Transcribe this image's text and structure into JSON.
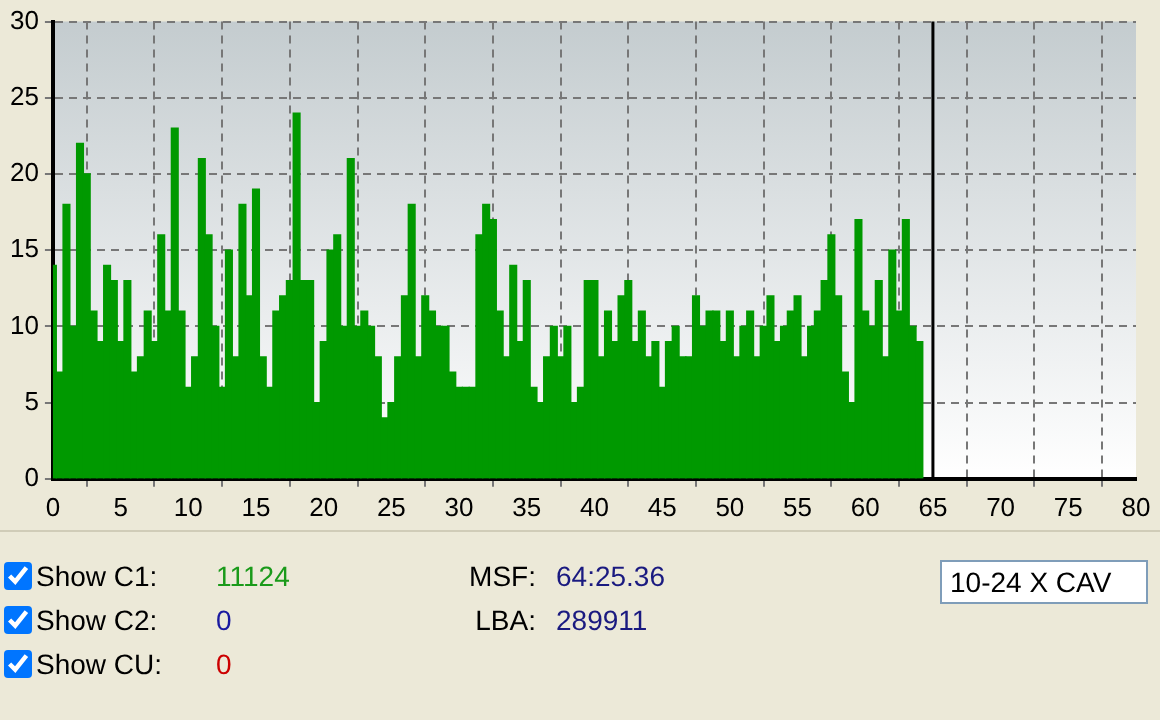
{
  "chart_data": {
    "type": "bar",
    "color": "#009900",
    "x": [
      0,
      0.5,
      1,
      1.5,
      2,
      2.5,
      3,
      3.5,
      4,
      4.5,
      5,
      5.5,
      6,
      6.5,
      7,
      7.5,
      8,
      8.5,
      9,
      9.5,
      10,
      10.5,
      11,
      11.5,
      12,
      12.5,
      13,
      13.5,
      14,
      14.5,
      15,
      15.5,
      16,
      16.5,
      17,
      17.5,
      18,
      18.5,
      19,
      19.5,
      20,
      20.5,
      21,
      21.5,
      22,
      22.5,
      23,
      23.5,
      24,
      24.5,
      25,
      25.5,
      26,
      26.5,
      27,
      27.5,
      28,
      28.5,
      29,
      29.5,
      30,
      30.5,
      31,
      31.5,
      32,
      32.5,
      33,
      33.5,
      34,
      34.5,
      35,
      35.5,
      36,
      36.5,
      37,
      37.5,
      38,
      38.5,
      39,
      39.5,
      40,
      40.5,
      41,
      41.5,
      42,
      42.5,
      43,
      43.5,
      44,
      44.5,
      45,
      45.5,
      46,
      46.5,
      47,
      47.5,
      48,
      48.5,
      49,
      49.5,
      50,
      50.5,
      51,
      51.5,
      52,
      52.5,
      53,
      53.5,
      54,
      54.5,
      55,
      55.5,
      56,
      56.5,
      57,
      57.5,
      58,
      58.5,
      59,
      59.5,
      60,
      60.5,
      61,
      61.5,
      62,
      62.5,
      63,
      63.5,
      64
    ],
    "values": [
      14,
      7,
      18,
      10,
      22,
      20,
      11,
      9,
      14,
      13,
      9,
      13,
      7,
      8,
      11,
      9,
      16,
      11,
      23,
      11,
      6,
      8,
      21,
      16,
      10,
      6,
      15,
      8,
      18,
      12,
      19,
      8,
      6,
      11,
      12,
      13,
      24,
      13,
      13,
      5,
      9,
      15,
      16,
      10,
      21,
      10,
      11,
      10,
      8,
      4,
      5,
      8,
      12,
      18,
      8,
      12,
      11,
      10,
      10,
      7,
      6,
      6,
      6,
      16,
      18,
      17,
      11,
      8,
      14,
      9,
      13,
      6,
      5,
      8,
      10,
      8,
      10,
      5,
      6,
      13,
      13,
      8,
      11,
      9,
      12,
      13,
      9,
      11,
      8,
      9,
      6,
      9,
      10,
      8,
      8,
      12,
      10,
      11,
      11,
      9,
      11,
      8,
      10,
      11,
      8,
      10,
      12,
      9,
      10,
      11,
      12,
      8,
      10,
      11,
      13,
      16,
      12,
      7,
      5,
      17,
      11,
      10,
      13,
      8,
      15,
      11,
      17,
      10,
      9
    ],
    "xlim": [
      0,
      80
    ],
    "xticks": [
      0,
      5,
      10,
      15,
      20,
      25,
      30,
      35,
      40,
      45,
      50,
      55,
      60,
      65,
      70,
      75,
      80
    ],
    "ylim": [
      0,
      30
    ],
    "yticks": [
      0,
      5,
      10,
      15,
      20,
      25,
      30
    ],
    "grid": true,
    "ref_lines": [
      {
        "axis": "x",
        "value": 65,
        "color": "#000000"
      }
    ],
    "annotations": [
      "Show C1:",
      "11124",
      "Show C2:",
      "0",
      "Show CU:",
      "0",
      "MSF:",
      "64:25.36",
      "LBA:",
      "289911",
      "10-24 X CAV"
    ]
  }
}
